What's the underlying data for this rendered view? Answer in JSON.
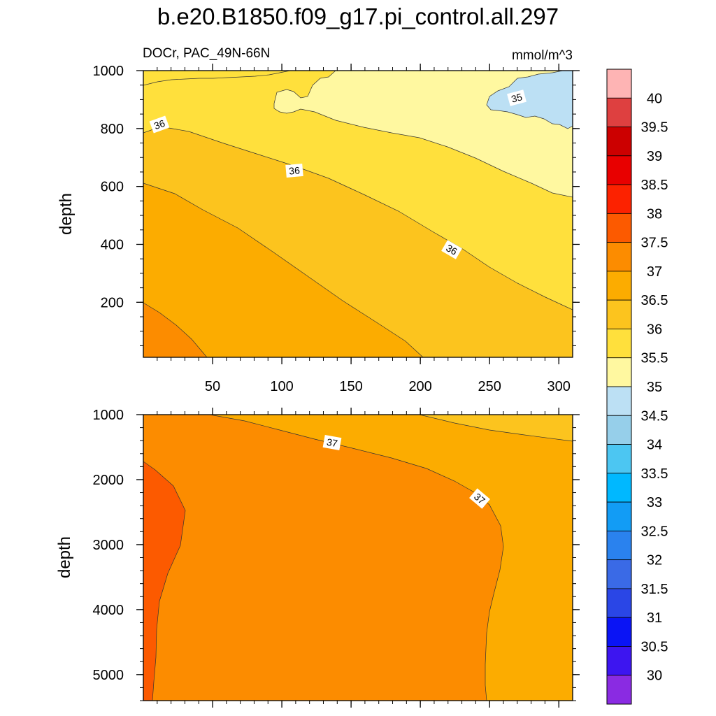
{
  "chart_data": {
    "type": "contour",
    "title": "b.e20.B1850.f09_g17.pi_control.all.297",
    "variable": "DOCr, PAC_49N-66N",
    "units": "mmol/m^3",
    "colorbar": {
      "levels": [
        30,
        30.5,
        31,
        31.5,
        32,
        32.5,
        33,
        33.5,
        34,
        34.5,
        35,
        35.5,
        36,
        36.5,
        37,
        37.5,
        38,
        38.5,
        39,
        39.5,
        40
      ],
      "labels": [
        "30",
        "30.5",
        "31",
        "31.5",
        "32",
        "32.5",
        "33",
        "33.5",
        "34",
        "34.5",
        "35",
        "35.5",
        "36",
        "36.5",
        "37",
        "37.5",
        "38",
        "38.5",
        "39",
        "39.5",
        "40"
      ],
      "colors": [
        "#8a2be2",
        "#3d15f0",
        "#0a14f5",
        "#2a46e6",
        "#3a6ae6",
        "#2a82ee",
        "#129cf5",
        "#00b8ff",
        "#4cc6f2",
        "#96cfea",
        "#bce0f4",
        "#fff8a0",
        "#ffe03c",
        "#fcc41e",
        "#fcac00",
        "#fc8c00",
        "#fc5a00",
        "#fc2200",
        "#e80000",
        "#cc0000",
        "#de4040",
        "#feb4b4"
      ]
    },
    "panels": [
      {
        "name": "upper",
        "xlabel": "",
        "ylabel": "depth",
        "xlim": [
          0,
          310
        ],
        "ylim": [
          1000,
          10
        ],
        "xticks": [
          50,
          100,
          150,
          200,
          250,
          300
        ],
        "xtick_labels": [
          "50",
          "100",
          "150",
          "200",
          "250",
          "300"
        ],
        "yticks": [
          200,
          400,
          600,
          800,
          1000
        ],
        "ytick_labels": [
          "200",
          "400",
          "600",
          "800",
          "1000"
        ],
        "contour_labels": [
          {
            "text": "36",
            "x": 12,
            "y": 200
          },
          {
            "text": "36",
            "x": 110,
            "y": 355
          },
          {
            "text": "36",
            "x": 222,
            "y": 625
          },
          {
            "text": "35",
            "x": 270,
            "y": 95
          }
        ]
      },
      {
        "name": "lower",
        "xlabel": "",
        "ylabel": "depth",
        "xlim": [
          0,
          310
        ],
        "ylim": [
          1000,
          5400
        ],
        "xticks": [
          50,
          100,
          150,
          200,
          250,
          300
        ],
        "xtick_labels": [],
        "yticks": [
          1000,
          2000,
          3000,
          4000,
          5000
        ],
        "ytick_labels": [
          "1000",
          "2000",
          "3000",
          "4000",
          "5000"
        ],
        "contour_labels": [
          {
            "text": "37",
            "x": 137,
            "y": 1400
          },
          {
            "text": "37",
            "x": 242,
            "y": 2300
          }
        ]
      }
    ]
  }
}
